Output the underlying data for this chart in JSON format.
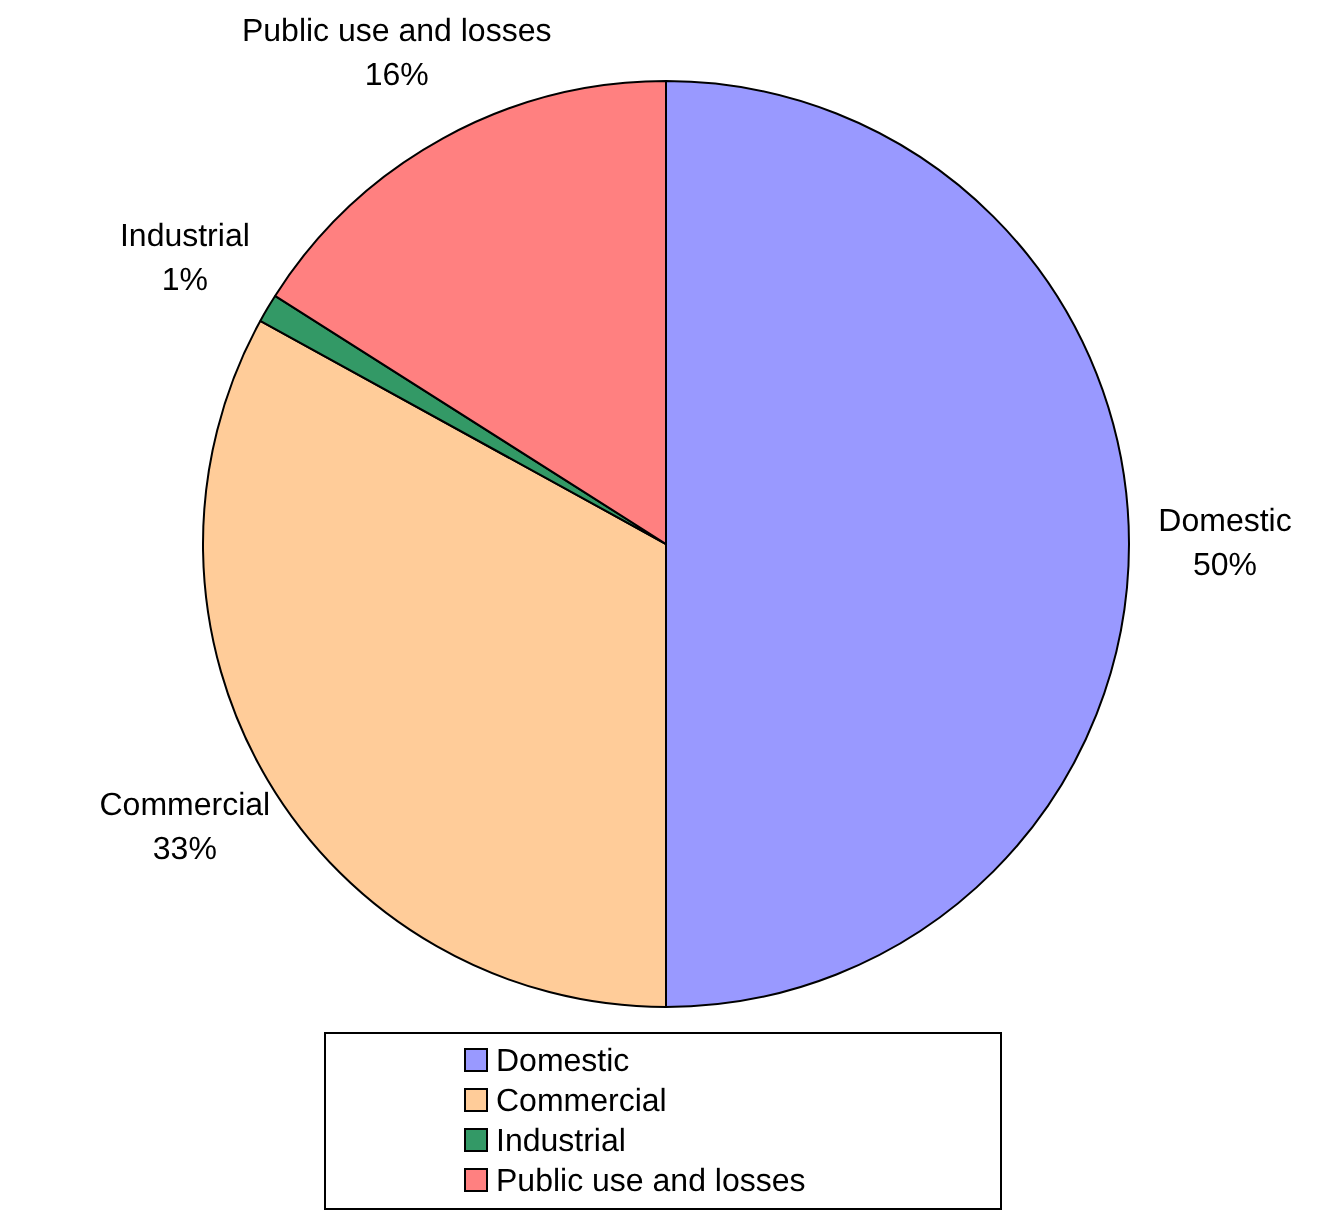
{
  "chart_data": {
    "type": "pie",
    "categories": [
      "Domestic",
      "Commercial",
      "Industrial",
      "Public use and losses"
    ],
    "values": [
      50,
      33,
      1,
      16
    ],
    "value_labels": [
      "50%",
      "33%",
      "1%",
      "16%"
    ],
    "colors": [
      "#9999ff",
      "#ffcc99",
      "#339966",
      "#ff8080"
    ],
    "legend": "bottom"
  }
}
